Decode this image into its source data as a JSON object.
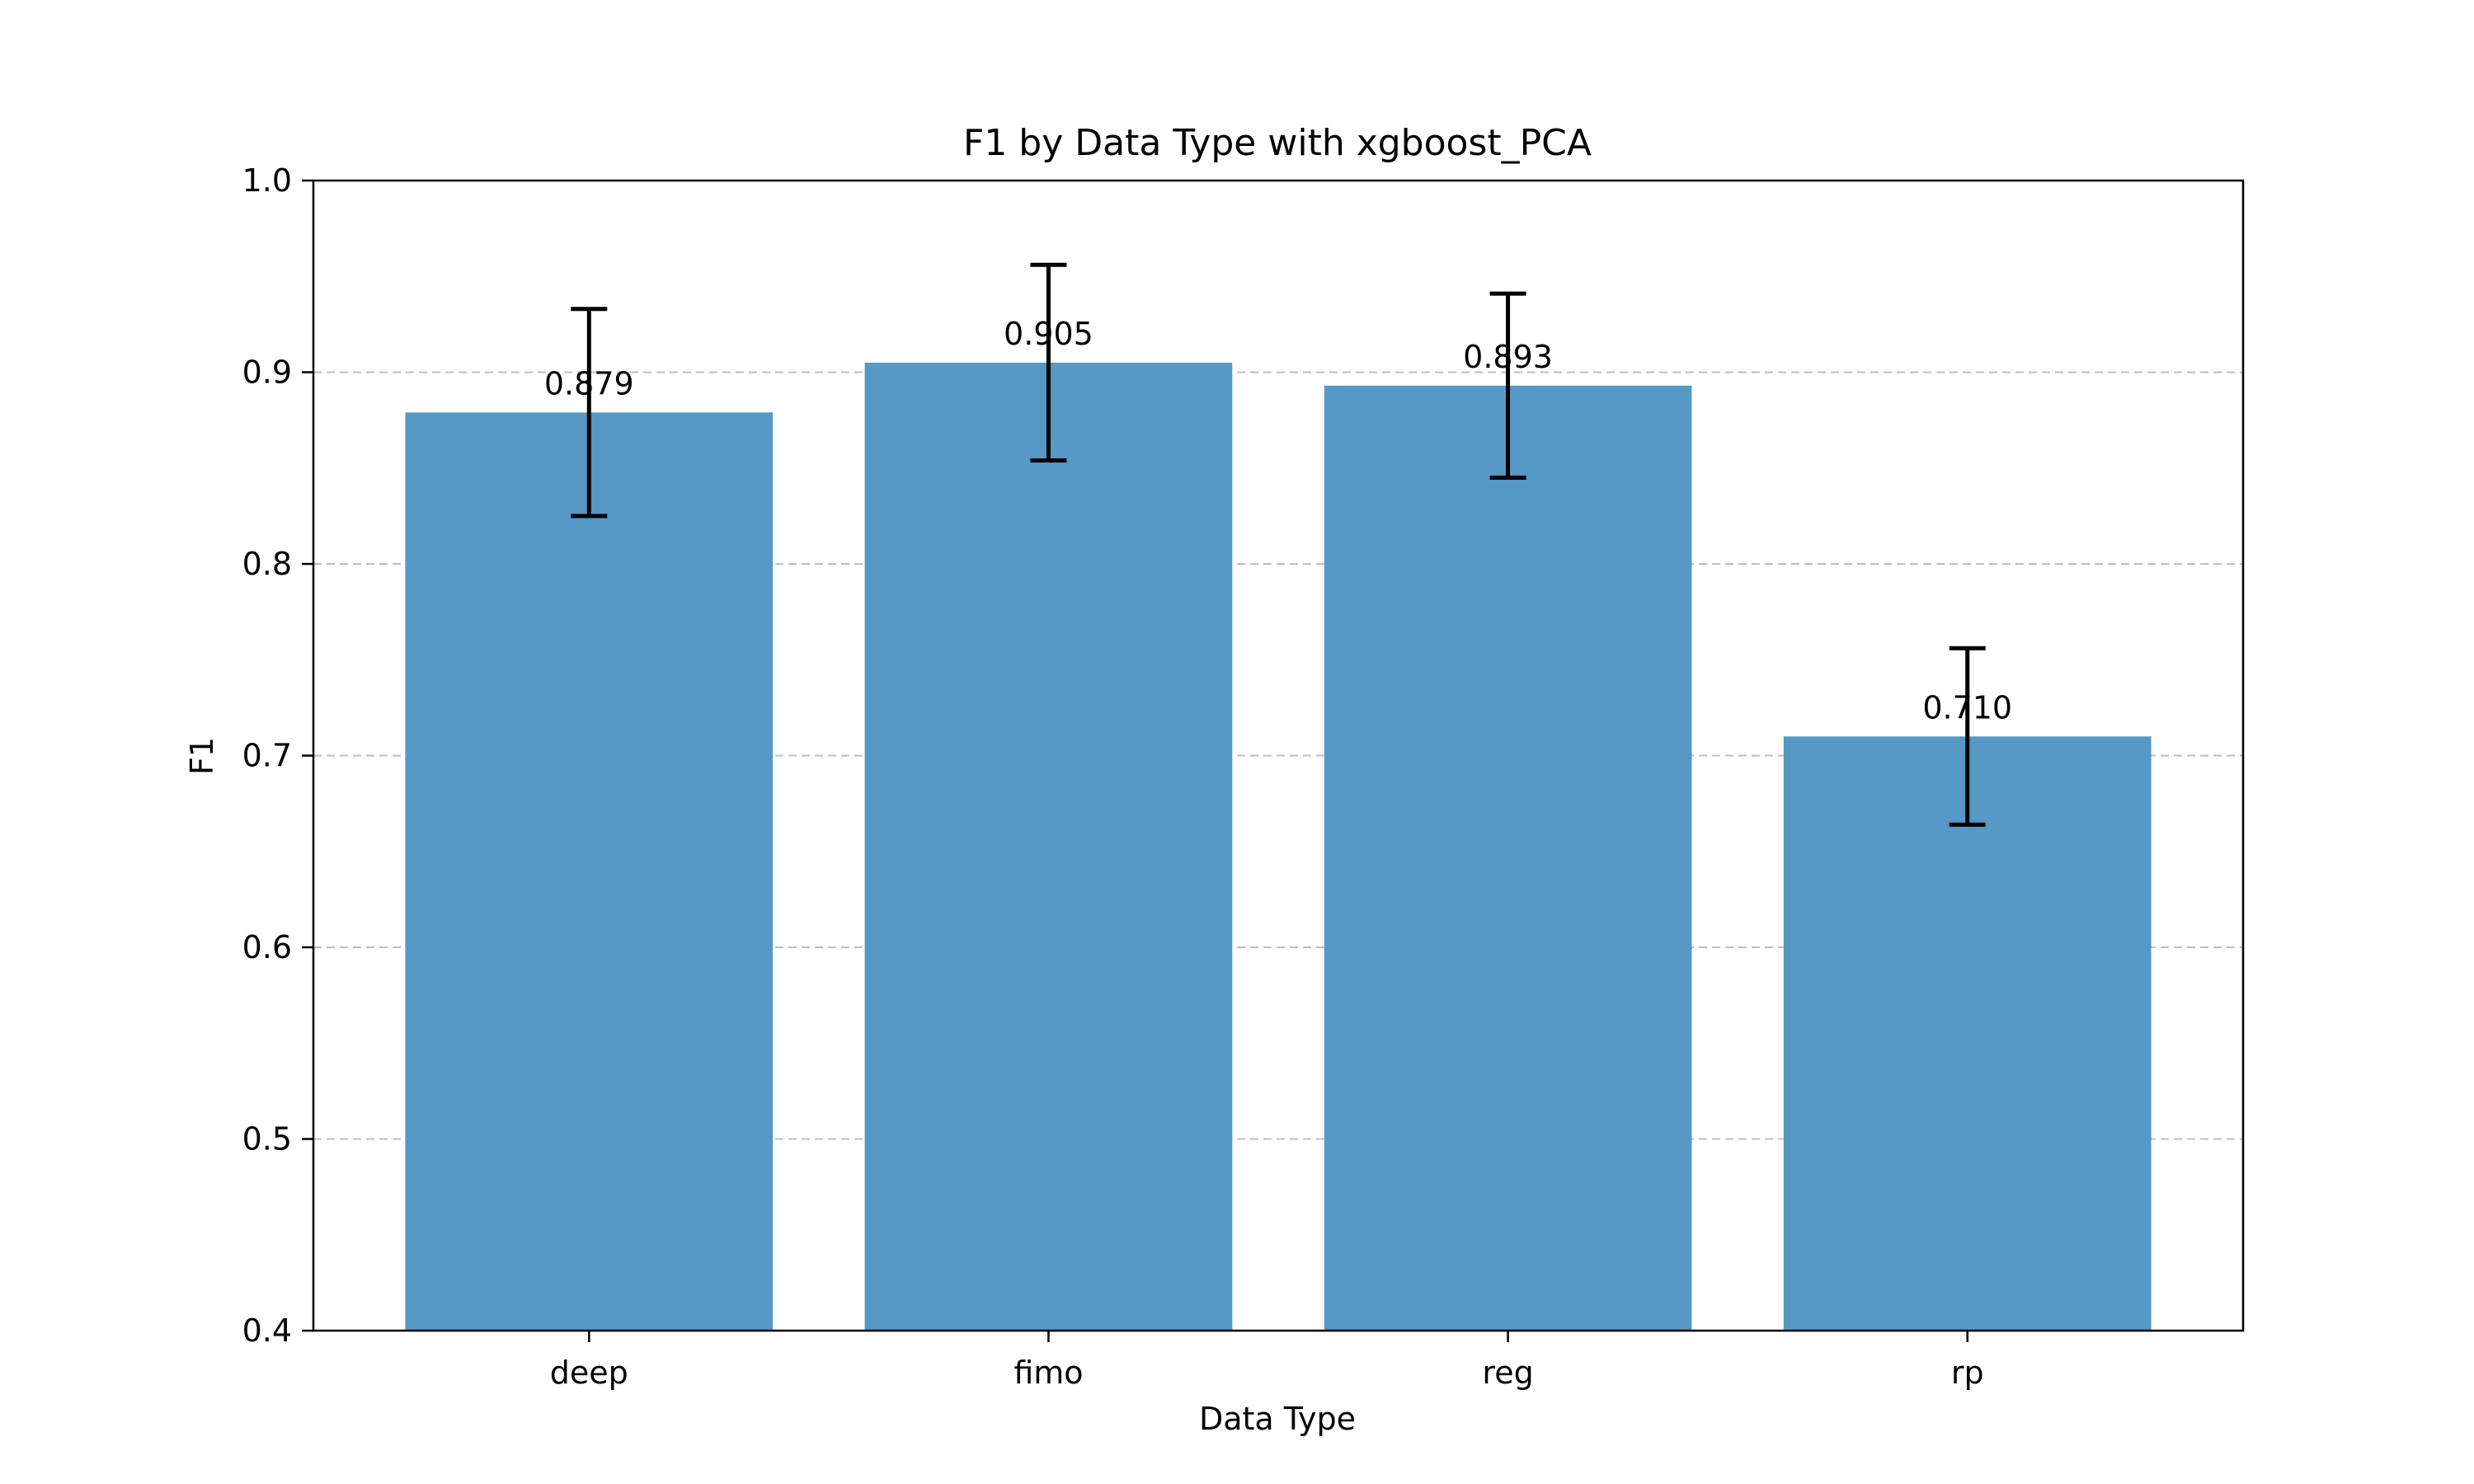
{
  "chart_data": {
    "type": "bar",
    "title": "F1 by Data Type with xgboost_PCA",
    "xlabel": "Data Type",
    "ylabel": "F1",
    "categories": [
      "deep",
      "fimo",
      "reg",
      "rp"
    ],
    "values": [
      0.879,
      0.905,
      0.893,
      0.71
    ],
    "errors": [
      0.054,
      0.051,
      0.048,
      0.046
    ],
    "data_labels": [
      "0.879",
      "0.905",
      "0.893",
      "0.710"
    ],
    "ylim": [
      0.4,
      1.0
    ],
    "yticks": [
      0.4,
      0.5,
      0.6,
      0.7,
      0.8,
      0.9,
      1.0
    ],
    "ytick_labels": [
      "0.4",
      "0.5",
      "0.6",
      "0.7",
      "0.8",
      "0.9",
      "1.0"
    ],
    "grid": "y-dashed",
    "bar_color": "#5698c6",
    "error_color": "#000000"
  }
}
